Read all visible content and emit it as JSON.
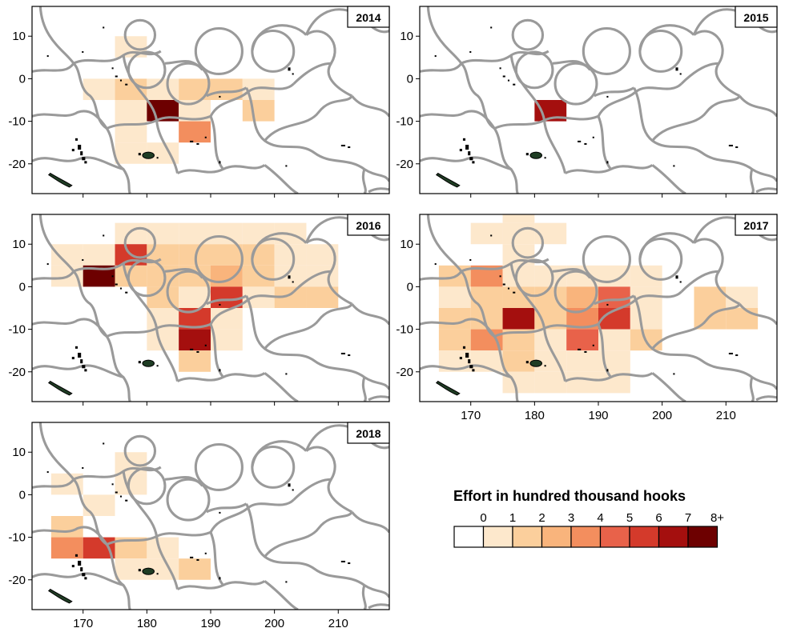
{
  "chart_data": {
    "type": "heatmap",
    "grid_cell_size_deg": 5,
    "xlim": [
      162,
      218
    ],
    "ylim": [
      -27,
      17
    ],
    "x_ticks": [
      170,
      180,
      190,
      200,
      210
    ],
    "y_ticks": [
      10,
      0,
      -10,
      -20
    ],
    "x_tick_labels": [
      "170",
      "180",
      "190",
      "200",
      "210"
    ],
    "y_tick_labels": [
      "10",
      "0",
      "-10",
      "-20"
    ],
    "color_scale": [
      "#ffffff",
      "#fde8cc",
      "#fbcf9c",
      "#f9b47c",
      "#f38e5e",
      "#e8624a",
      "#d43a2b",
      "#a40f0e",
      "#6d0000"
    ],
    "legend": {
      "title": "Effort in  hundred thousand hooks",
      "labels": [
        "0",
        "1",
        "2",
        "3",
        "4",
        "5",
        "6",
        "7",
        "8+"
      ]
    },
    "panels": [
      {
        "year": "2014",
        "cells": [
          {
            "lon": 175,
            "lat": 5,
            "level": 1
          },
          {
            "lon": 170,
            "lat": -5,
            "level": 1
          },
          {
            "lon": 175,
            "lat": -5,
            "level": 2
          },
          {
            "lon": 180,
            "lat": -5,
            "level": 1
          },
          {
            "lon": 185,
            "lat": -5,
            "level": 2
          },
          {
            "lon": 190,
            "lat": -5,
            "level": 2
          },
          {
            "lon": 195,
            "lat": -5,
            "level": 1
          },
          {
            "lon": 175,
            "lat": -10,
            "level": 1
          },
          {
            "lon": 180,
            "lat": -10,
            "level": 8
          },
          {
            "lon": 185,
            "lat": -10,
            "level": 1
          },
          {
            "lon": 195,
            "lat": -10,
            "level": 2
          },
          {
            "lon": 175,
            "lat": -15,
            "level": 1
          },
          {
            "lon": 185,
            "lat": -15,
            "level": 4
          },
          {
            "lon": 175,
            "lat": -20,
            "level": 1
          },
          {
            "lon": 180,
            "lat": -20,
            "level": 1
          }
        ]
      },
      {
        "year": "2015",
        "cells": [
          {
            "lon": 180,
            "lat": -10,
            "level": 7
          }
        ]
      },
      {
        "year": "2016",
        "cells": [
          {
            "lon": 175,
            "lat": 10,
            "level": 1
          },
          {
            "lon": 180,
            "lat": 10,
            "level": 1
          },
          {
            "lon": 185,
            "lat": 10,
            "level": 1
          },
          {
            "lon": 190,
            "lat": 10,
            "level": 1
          },
          {
            "lon": 195,
            "lat": 10,
            "level": 1
          },
          {
            "lon": 200,
            "lat": 10,
            "level": 1
          },
          {
            "lon": 165,
            "lat": 5,
            "level": 1
          },
          {
            "lon": 170,
            "lat": 5,
            "level": 1
          },
          {
            "lon": 175,
            "lat": 5,
            "level": 6
          },
          {
            "lon": 180,
            "lat": 5,
            "level": 2
          },
          {
            "lon": 185,
            "lat": 5,
            "level": 2
          },
          {
            "lon": 190,
            "lat": 5,
            "level": 2
          },
          {
            "lon": 195,
            "lat": 5,
            "level": 2
          },
          {
            "lon": 200,
            "lat": 5,
            "level": 1
          },
          {
            "lon": 205,
            "lat": 5,
            "level": 1
          },
          {
            "lon": 165,
            "lat": 0,
            "level": 1
          },
          {
            "lon": 170,
            "lat": 0,
            "level": 8
          },
          {
            "lon": 175,
            "lat": 0,
            "level": 2
          },
          {
            "lon": 180,
            "lat": 0,
            "level": 2
          },
          {
            "lon": 185,
            "lat": 0,
            "level": 2
          },
          {
            "lon": 190,
            "lat": 0,
            "level": 3
          },
          {
            "lon": 195,
            "lat": 0,
            "level": 2
          },
          {
            "lon": 200,
            "lat": 0,
            "level": 1
          },
          {
            "lon": 205,
            "lat": 0,
            "level": 1
          },
          {
            "lon": 180,
            "lat": -5,
            "level": 2
          },
          {
            "lon": 185,
            "lat": -5,
            "level": 1
          },
          {
            "lon": 190,
            "lat": -5,
            "level": 6
          },
          {
            "lon": 195,
            "lat": -5,
            "level": 1
          },
          {
            "lon": 200,
            "lat": -5,
            "level": 2
          },
          {
            "lon": 205,
            "lat": -5,
            "level": 2
          },
          {
            "lon": 180,
            "lat": -10,
            "level": 1
          },
          {
            "lon": 185,
            "lat": -10,
            "level": 6
          },
          {
            "lon": 190,
            "lat": -10,
            "level": 1
          },
          {
            "lon": 180,
            "lat": -15,
            "level": 1
          },
          {
            "lon": 185,
            "lat": -15,
            "level": 7
          },
          {
            "lon": 190,
            "lat": -15,
            "level": 1
          },
          {
            "lon": 185,
            "lat": -20,
            "level": 2
          }
        ]
      },
      {
        "year": "2017",
        "cells": [
          {
            "lon": 175,
            "lat": 15,
            "level": 1
          },
          {
            "lon": 170,
            "lat": 10,
            "level": 1
          },
          {
            "lon": 175,
            "lat": 10,
            "level": 1
          },
          {
            "lon": 180,
            "lat": 10,
            "level": 1
          },
          {
            "lon": 175,
            "lat": 5,
            "level": 1
          },
          {
            "lon": 165,
            "lat": 0,
            "level": 2
          },
          {
            "lon": 170,
            "lat": 0,
            "level": 4
          },
          {
            "lon": 175,
            "lat": 0,
            "level": 1
          },
          {
            "lon": 180,
            "lat": 0,
            "level": 1
          },
          {
            "lon": 185,
            "lat": 0,
            "level": 1
          },
          {
            "lon": 190,
            "lat": 0,
            "level": 1
          },
          {
            "lon": 195,
            "lat": 0,
            "level": 1
          },
          {
            "lon": 165,
            "lat": -5,
            "level": 1
          },
          {
            "lon": 170,
            "lat": -5,
            "level": 2
          },
          {
            "lon": 175,
            "lat": -5,
            "level": 2
          },
          {
            "lon": 180,
            "lat": -5,
            "level": 2
          },
          {
            "lon": 185,
            "lat": -5,
            "level": 3
          },
          {
            "lon": 190,
            "lat": -5,
            "level": 5
          },
          {
            "lon": 195,
            "lat": -5,
            "level": 1
          },
          {
            "lon": 205,
            "lat": -5,
            "level": 2
          },
          {
            "lon": 210,
            "lat": -5,
            "level": 1
          },
          {
            "lon": 165,
            "lat": -10,
            "level": 2
          },
          {
            "lon": 170,
            "lat": -10,
            "level": 2
          },
          {
            "lon": 175,
            "lat": -10,
            "level": 7
          },
          {
            "lon": 180,
            "lat": -10,
            "level": 2
          },
          {
            "lon": 185,
            "lat": -10,
            "level": 4
          },
          {
            "lon": 190,
            "lat": -10,
            "level": 6
          },
          {
            "lon": 195,
            "lat": -10,
            "level": 1
          },
          {
            "lon": 205,
            "lat": -10,
            "level": 2
          },
          {
            "lon": 210,
            "lat": -10,
            "level": 2
          },
          {
            "lon": 165,
            "lat": -15,
            "level": 2
          },
          {
            "lon": 170,
            "lat": -15,
            "level": 4
          },
          {
            "lon": 175,
            "lat": -15,
            "level": 2
          },
          {
            "lon": 180,
            "lat": -15,
            "level": 1
          },
          {
            "lon": 185,
            "lat": -15,
            "level": 5
          },
          {
            "lon": 190,
            "lat": -15,
            "level": 1
          },
          {
            "lon": 195,
            "lat": -15,
            "level": 2
          },
          {
            "lon": 165,
            "lat": -20,
            "level": 1
          },
          {
            "lon": 170,
            "lat": -20,
            "level": 1
          },
          {
            "lon": 175,
            "lat": -20,
            "level": 2
          },
          {
            "lon": 180,
            "lat": -20,
            "level": 1
          },
          {
            "lon": 185,
            "lat": -20,
            "level": 1
          },
          {
            "lon": 190,
            "lat": -20,
            "level": 1
          },
          {
            "lon": 175,
            "lat": -25,
            "level": 1
          },
          {
            "lon": 180,
            "lat": -25,
            "level": 1
          },
          {
            "lon": 185,
            "lat": -25,
            "level": 1
          },
          {
            "lon": 190,
            "lat": -25,
            "level": 1
          }
        ]
      },
      {
        "year": "2018",
        "cells": [
          {
            "lon": 175,
            "lat": 5,
            "level": 1
          },
          {
            "lon": 165,
            "lat": 0,
            "level": 1
          },
          {
            "lon": 175,
            "lat": 0,
            "level": 1
          },
          {
            "lon": 170,
            "lat": -5,
            "level": 1
          },
          {
            "lon": 165,
            "lat": -10,
            "level": 2
          },
          {
            "lon": 165,
            "lat": -15,
            "level": 4
          },
          {
            "lon": 170,
            "lat": -15,
            "level": 6
          },
          {
            "lon": 175,
            "lat": -15,
            "level": 2
          },
          {
            "lon": 180,
            "lat": -15,
            "level": 1
          },
          {
            "lon": 175,
            "lat": -20,
            "level": 1
          },
          {
            "lon": 180,
            "lat": -20,
            "level": 1
          },
          {
            "lon": 185,
            "lat": -20,
            "level": 2
          }
        ]
      }
    ]
  }
}
